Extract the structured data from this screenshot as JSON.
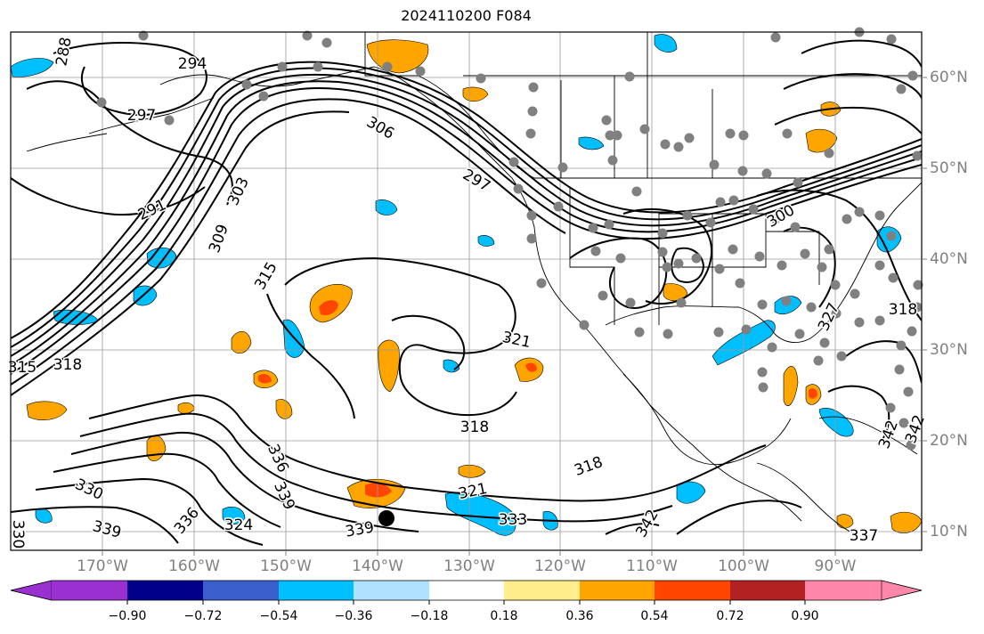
{
  "title": "2024110200 F084",
  "lon_labels": [
    "170°W",
    "160°W",
    "150°W",
    "140°W",
    "130°W",
    "120°W",
    "110°W",
    "100°W",
    "90°W"
  ],
  "lat_labels": [
    "60°N",
    "50°N",
    "40°N",
    "30°N",
    "20°N",
    "10°N"
  ],
  "contour_labels": [
    "288",
    "294",
    "297",
    "291",
    "303",
    "309",
    "306",
    "297",
    "315",
    "315",
    "318",
    "321",
    "318",
    "318",
    "321",
    "333",
    "339",
    "339",
    "342",
    "330",
    "339",
    "336",
    "324",
    "336",
    "330",
    "300",
    "318",
    "327",
    "342",
    "342",
    "337"
  ],
  "colorbar": {
    "ticks": [
      "−0.90",
      "−0.72",
      "−0.54",
      "−0.36",
      "−0.18",
      "0.18",
      "0.36",
      "0.54",
      "0.72",
      "0.90"
    ],
    "colors": [
      "#9b30d0",
      "#00008b",
      "#3a5fcd",
      "#00bfff",
      "#b0e2ff",
      "#ffffff",
      "#ffec8b",
      "#ffa500",
      "#ff4500",
      "#b22222",
      "#ff88aa"
    ]
  }
}
